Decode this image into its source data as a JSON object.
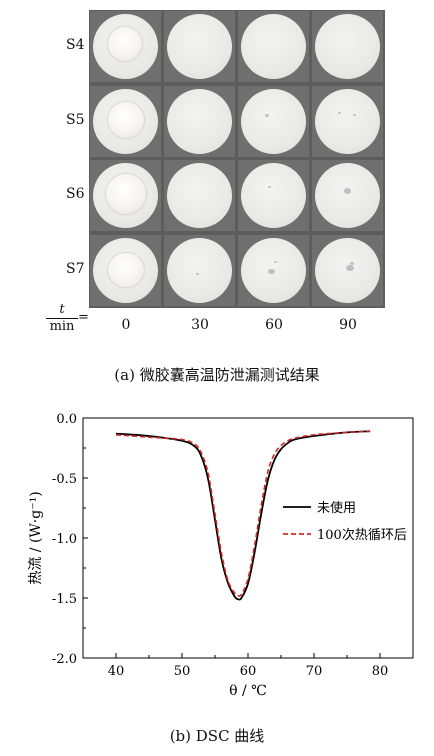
{
  "panel_a": {
    "row_labels": [
      "S4",
      "S5",
      "S6",
      "S7"
    ],
    "axis_label_numerator": "t",
    "axis_label_denominator": "min",
    "axis_label_eq": "=",
    "col_labels": [
      "0",
      "30",
      "60",
      "90"
    ],
    "caption": "(a)  微胶囊高温防泄漏测试结果"
  },
  "panel_b_caption": "(b)  DSC 曲线",
  "chart_data": {
    "type": "line",
    "title": "",
    "xlabel": "θ / ℃",
    "ylabel": "热流 / (W·g⁻¹)",
    "xlim": [
      35,
      85
    ],
    "ylim": [
      -2.0,
      0.0
    ],
    "xticks": [
      40,
      50,
      60,
      70,
      80
    ],
    "yticks": [
      0.0,
      -0.5,
      -1.0,
      -1.5,
      -2.0
    ],
    "ytick_labels": [
      "0.0",
      "-0.5",
      "-1.0",
      "-1.5",
      "-2.0"
    ],
    "grid": false,
    "legend_position": "right",
    "series": [
      {
        "name": "未使用",
        "color": "#000000",
        "style": "solid",
        "x": [
          40,
          45,
          50,
          52,
          53,
          54,
          55,
          56,
          57,
          58,
          58.5,
          59,
          60,
          61,
          62,
          63,
          64,
          65,
          66,
          67,
          70,
          75,
          78.5
        ],
        "y": [
          -0.13,
          -0.15,
          -0.19,
          -0.24,
          -0.33,
          -0.52,
          -0.85,
          -1.18,
          -1.38,
          -1.49,
          -1.51,
          -1.5,
          -1.38,
          -1.12,
          -0.8,
          -0.52,
          -0.35,
          -0.26,
          -0.21,
          -0.18,
          -0.15,
          -0.12,
          -0.11
        ]
      },
      {
        "name": "100次热循环后",
        "color": "#d62728",
        "style": "dashed",
        "x": [
          40,
          45,
          50,
          52,
          53,
          54,
          55,
          56,
          57,
          58,
          58.5,
          59,
          60,
          61,
          62,
          63,
          64,
          65,
          66,
          67,
          70,
          75,
          78.5
        ],
        "y": [
          -0.14,
          -0.16,
          -0.18,
          -0.22,
          -0.3,
          -0.47,
          -0.8,
          -1.13,
          -1.36,
          -1.46,
          -1.48,
          -1.47,
          -1.34,
          -1.06,
          -0.73,
          -0.45,
          -0.3,
          -0.23,
          -0.19,
          -0.17,
          -0.14,
          -0.12,
          -0.11
        ]
      }
    ]
  }
}
